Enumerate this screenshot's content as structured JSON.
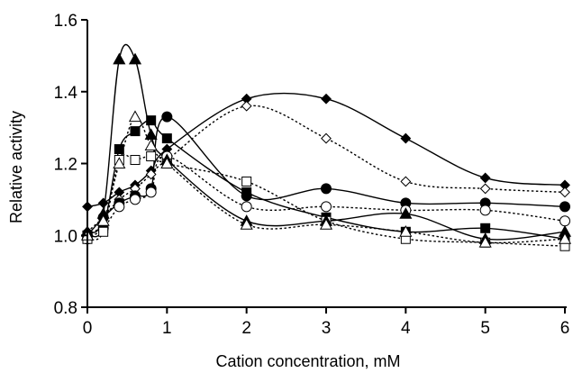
{
  "chart_data": {
    "type": "line",
    "xlabel": "Cation concentration, mM",
    "ylabel": "Relative activity",
    "xlim": [
      0,
      6
    ],
    "ylim": [
      0.8,
      1.6
    ],
    "x_ticks": [
      0,
      1,
      2,
      3,
      4,
      5,
      6
    ],
    "x_tick_labels": [
      "0",
      "1",
      "2",
      "3",
      "4",
      "5",
      "6"
    ],
    "y_ticks": [
      0.8,
      1.0,
      1.2,
      1.4,
      1.6
    ],
    "y_tick_labels": [
      "0.8",
      "1.0",
      "1.2",
      "1.4",
      "1.6"
    ],
    "grid": false,
    "legend": "none",
    "x": [
      0,
      0.2,
      0.4,
      0.6,
      0.8,
      1,
      2,
      3,
      4,
      5,
      6
    ],
    "series": [
      {
        "marker": "diamond-filled",
        "line": "solid",
        "values": [
          1.08,
          1.09,
          1.12,
          1.14,
          1.18,
          1.24,
          1.38,
          1.38,
          1.27,
          1.16,
          1.14
        ]
      },
      {
        "marker": "diamond-open",
        "line": "dotted",
        "values": [
          1.01,
          1.05,
          1.1,
          1.13,
          1.17,
          1.21,
          1.36,
          1.27,
          1.15,
          1.13,
          1.12
        ]
      },
      {
        "marker": "circle-filled",
        "line": "solid",
        "values": [
          1.0,
          1.05,
          1.09,
          1.11,
          1.13,
          1.33,
          1.11,
          1.13,
          1.09,
          1.09,
          1.08
        ]
      },
      {
        "marker": "circle-open",
        "line": "dotted",
        "values": [
          0.99,
          1.02,
          1.08,
          1.1,
          1.12,
          1.22,
          1.08,
          1.08,
          1.07,
          1.07,
          1.04
        ]
      },
      {
        "marker": "square-filled",
        "line": "solid",
        "values": [
          1.0,
          1.02,
          1.24,
          1.29,
          1.32,
          1.27,
          1.12,
          1.05,
          1.01,
          1.02,
          0.99
        ]
      },
      {
        "marker": "square-open",
        "line": "dotted",
        "values": [
          0.99,
          1.01,
          1.21,
          1.21,
          1.22,
          1.2,
          1.15,
          1.04,
          0.99,
          0.98,
          0.97
        ]
      },
      {
        "marker": "triangle-filled",
        "line": "solid",
        "values": [
          1.01,
          1.06,
          1.49,
          1.49,
          1.28,
          1.21,
          1.04,
          1.04,
          1.06,
          0.99,
          1.01
        ]
      },
      {
        "marker": "triangle-open",
        "line": "dotted",
        "values": [
          1.0,
          1.04,
          1.2,
          1.33,
          1.25,
          1.2,
          1.03,
          1.03,
          1.01,
          0.98,
          0.99
        ]
      }
    ]
  }
}
